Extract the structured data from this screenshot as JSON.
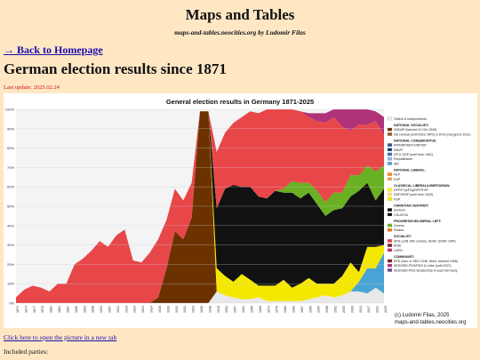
{
  "site": {
    "title": "Maps and Tables",
    "subtitle": "maps-and-tables.neocities.org by Ludomir Filas"
  },
  "nav": {
    "back_label": "→ Back to Homepage"
  },
  "page": {
    "heading": "German election results since 1871",
    "last_update": "Last update: 2025.02.24",
    "open_picture_label": "Click here to open the picture in a new tab",
    "included_parties_label": "Included parties:"
  },
  "chart_data": {
    "type": "area",
    "title": "General election results in Germany 1871-2025",
    "xlabel": "",
    "ylabel": "",
    "ylim": [
      0,
      100
    ],
    "yticks": [
      "0%",
      "10%",
      "20%",
      "30%",
      "40%",
      "50%",
      "60%",
      "70%",
      "80%",
      "90%",
      "100%"
    ],
    "x": [
      "1871",
      "1874",
      "1877",
      "1878",
      "1881",
      "1884",
      "1887",
      "1890",
      "1893",
      "1898",
      "1903",
      "1907",
      "1912",
      "1919",
      "1920",
      "1924",
      "1924",
      "1928",
      "1930",
      "1932",
      "1932",
      "1933",
      "1936",
      "1938",
      "1949",
      "1953",
      "1957",
      "1961",
      "1965",
      "1969",
      "1972",
      "1976",
      "1980",
      "1983",
      "1987",
      "1990",
      "1994",
      "1998",
      "2002",
      "2005",
      "2009",
      "2013",
      "2017",
      "2021",
      "2025"
    ],
    "series": [
      {
        "name": "Others & Independents",
        "color": "#e8e8e8",
        "values": [
          0,
          0,
          0,
          0,
          0,
          0,
          0,
          0,
          0,
          0,
          0,
          0,
          0,
          0,
          0,
          0,
          0,
          0,
          0,
          0,
          0,
          0,
          0,
          0,
          6,
          4,
          3,
          2,
          2,
          3,
          1,
          1,
          1,
          1,
          1,
          2,
          3,
          4,
          3,
          4,
          6,
          6,
          5,
          8,
          5
        ]
      },
      {
        "name": "NSDAP (banned 10 Oct 1945)",
        "color": "#6b3200",
        "values": [
          0,
          0,
          0,
          0,
          0,
          0,
          0,
          0,
          0,
          0,
          0,
          0,
          0,
          0,
          0,
          0,
          0,
          3,
          18,
          37,
          33,
          44,
          99,
          99,
          0,
          0,
          0,
          0,
          0,
          0,
          0,
          0,
          0,
          0,
          0,
          0,
          0,
          0,
          0,
          0,
          0,
          0,
          0,
          0,
          0
        ]
      },
      {
        "name": "AfD",
        "color": "#49a4d6",
        "values": [
          0,
          0,
          0,
          0,
          0,
          0,
          0,
          0,
          0,
          0,
          0,
          0,
          0,
          0,
          0,
          0,
          0,
          0,
          0,
          0,
          0,
          0,
          0,
          0,
          0,
          0,
          0,
          0,
          0,
          0,
          0,
          0,
          0,
          0,
          0,
          0,
          0,
          0,
          0,
          0,
          0,
          5,
          13,
          10,
          21
        ]
      },
      {
        "name": "FDP",
        "color": "#f5e800",
        "values": [
          0,
          0,
          0,
          0,
          0,
          0,
          0,
          0,
          0,
          0,
          0,
          0,
          0,
          0,
          0,
          0,
          0,
          0,
          0,
          0,
          0,
          0,
          0,
          0,
          12,
          10,
          8,
          13,
          10,
          6,
          8,
          8,
          11,
          7,
          9,
          11,
          7,
          6,
          7,
          10,
          15,
          5,
          11,
          11,
          4
        ]
      },
      {
        "name": "CDU/CSU",
        "color": "#111111",
        "values": [
          0,
          0,
          0,
          0,
          0,
          0,
          0,
          0,
          0,
          0,
          0,
          0,
          0,
          0,
          0,
          0,
          0,
          0,
          0,
          0,
          0,
          0,
          0,
          0,
          31,
          45,
          50,
          45,
          48,
          46,
          45,
          49,
          45,
          49,
          44,
          44,
          41,
          35,
          38,
          35,
          34,
          42,
          33,
          24,
          29
        ]
      },
      {
        "name": "Greens",
        "color": "#6ab023",
        "values": [
          0,
          0,
          0,
          0,
          0,
          0,
          0,
          0,
          0,
          0,
          0,
          0,
          0,
          0,
          0,
          0,
          0,
          0,
          0,
          0,
          0,
          0,
          0,
          0,
          0,
          0,
          0,
          0,
          0,
          0,
          0,
          0,
          2,
          6,
          8,
          5,
          7,
          7,
          9,
          8,
          11,
          8,
          9,
          15,
          12
        ]
      },
      {
        "name": "SPD",
        "color": "#e8474a",
        "values": [
          3,
          7,
          9,
          8,
          6,
          10,
          10,
          20,
          23,
          27,
          32,
          29,
          35,
          38,
          22,
          21,
          26,
          30,
          25,
          22,
          20,
          18,
          0,
          0,
          29,
          29,
          32,
          36,
          39,
          43,
          46,
          43,
          43,
          38,
          37,
          34,
          36,
          41,
          39,
          34,
          23,
          26,
          21,
          26,
          16
        ]
      },
      {
        "name": "PDS / Die Linke",
        "color": "#b0337a",
        "values": [
          0,
          0,
          0,
          0,
          0,
          0,
          0,
          0,
          0,
          0,
          0,
          0,
          0,
          0,
          0,
          0,
          0,
          0,
          0,
          0,
          0,
          0,
          0,
          0,
          0,
          0,
          0,
          0,
          0,
          0,
          0,
          0,
          0,
          0,
          0,
          2,
          4,
          5,
          4,
          9,
          12,
          9,
          9,
          5,
          9
        ]
      }
    ]
  },
  "legend": {
    "groups": [
      {
        "title": "",
        "items": [
          {
            "label": "Others & Independents",
            "color": "#e8e8e8"
          }
        ]
      },
      {
        "title": "NATIONAL SOCIALIST:",
        "items": [
          {
            "label": "NSDAP (banned 10 Oct 1945)",
            "color": "#6b3200"
          },
          {
            "label": "Die Heimat (until 2023: NPD) & DVU (merged in 2011)",
            "color": "#a0522d"
          }
        ]
      },
      {
        "title": "NATIONAL CONSERVATIVE:",
        "items": [
          {
            "label": "RP/DRP/DKP-DRP/DP",
            "color": "#2f5597"
          },
          {
            "label": "DNVP",
            "color": "#1f3a70"
          },
          {
            "label": "DP & GDP (until from 1961)",
            "color": "#3d6eb4"
          },
          {
            "label": "Republikaner",
            "color": "#7fb8e0"
          },
          {
            "label": "AfD",
            "color": "#49a4d6"
          }
        ]
      },
      {
        "title": "NATIONAL LIBERAL:",
        "items": [
          {
            "label": "NLP",
            "color": "#f58a1f"
          },
          {
            "label": "DVP",
            "color": "#f6a64a"
          }
        ]
      },
      {
        "title": "CLASSICAL LIBERAL/LIBERTARIAN:",
        "items": [
          {
            "label": "DFP/FVp/FVg/DFP/FVP",
            "color": "#fff200"
          },
          {
            "label": "DDP/DStP (until from 1920)",
            "color": "#ffe066"
          },
          {
            "label": "FDP",
            "color": "#f5e800"
          }
        ]
      },
      {
        "title": "CHRISTIAN CENTRIST:",
        "items": [
          {
            "label": "Zentrum",
            "color": "#111111"
          },
          {
            "label": "CDU/CSU",
            "color": "#111111"
          }
        ]
      },
      {
        "title": "PROGRESSIVE/LIBERAL LEFT:",
        "items": [
          {
            "label": "Greens",
            "color": "#6ab023"
          },
          {
            "label": "Pirates",
            "color": "#f57a00"
          }
        ]
      },
      {
        "title": "SOCIALIST:",
        "items": [
          {
            "label": "SPD (until 19th century: ADAV, SDAP, SAP)",
            "color": "#e8474a"
          },
          {
            "label": "BSW",
            "color": "#7b1f3a"
          },
          {
            "label": "USPD",
            "color": "#c0305a"
          }
        ]
      },
      {
        "title": "COMMUNIST:",
        "items": [
          {
            "label": "KPD (ban. in SED 1946, West: banned 1956)",
            "color": "#8b1a1a"
          },
          {
            "label": "SED/SED-PDS/PDS & Linke (until 2007)",
            "color": "#b0337a"
          },
          {
            "label": "SED/SED-PDS dictatorship in East Germany",
            "color": "#6a4c93"
          }
        ]
      }
    ],
    "credit_line1": "(c) Ludomir Filas, 2025",
    "credit_line2": "maps-and-tables.neocities.org"
  },
  "colors": {
    "background": "#ffe7c4",
    "link": "#1a0dab",
    "update": "#d01010"
  }
}
